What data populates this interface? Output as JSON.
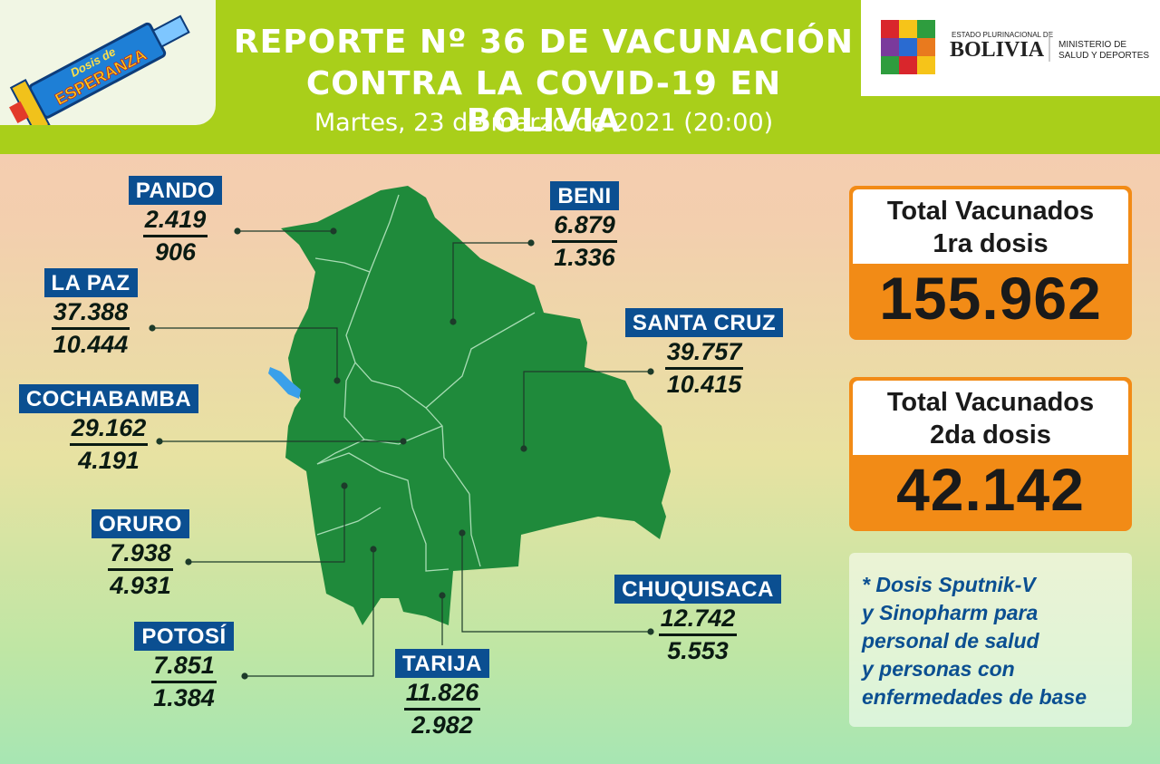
{
  "header": {
    "title_line1": "REPORTE Nº 36 DE VACUNACIÓN",
    "title_line2": "CONTRA LA COVID-19 EN BOLIVIA",
    "date": "Martes, 23 de marzo de 2021 (20:00)"
  },
  "logo": {
    "line1": "Dosis de",
    "line2": "ESPERANZA"
  },
  "government": {
    "small": "ESTADO PLURINACIONAL DE",
    "country": "BOLIVIA",
    "ministry_line1": "MINISTERIO DE",
    "ministry_line2": "SALUD Y DEPORTES"
  },
  "regions": [
    {
      "id": "pando",
      "name": "PANDO",
      "dose1": "2.419",
      "dose2": "906"
    },
    {
      "id": "beni",
      "name": "BENI",
      "dose1": "6.879",
      "dose2": "1.336"
    },
    {
      "id": "la-paz",
      "name": "LA PAZ",
      "dose1": "37.388",
      "dose2": "10.444"
    },
    {
      "id": "santa-cruz",
      "name": "SANTA CRUZ",
      "dose1": "39.757",
      "dose2": "10.415"
    },
    {
      "id": "cochabamba",
      "name": "COCHABAMBA",
      "dose1": "29.162",
      "dose2": "4.191"
    },
    {
      "id": "oruro",
      "name": "ORURO",
      "dose1": "7.938",
      "dose2": "4.931"
    },
    {
      "id": "chuquisaca",
      "name": "CHUQUISACA",
      "dose1": "12.742",
      "dose2": "5.553"
    },
    {
      "id": "potosi",
      "name": "POTOSÍ",
      "dose1": "7.851",
      "dose2": "1.384"
    },
    {
      "id": "tarija",
      "name": "TARIJA",
      "dose1": "11.826",
      "dose2": "2.982"
    }
  ],
  "totals": {
    "first": {
      "label_line1": "Total Vacunados",
      "label_line2": "1ra dosis",
      "value": "155.962"
    },
    "second": {
      "label_line1": "Total Vacunados",
      "label_line2": "2da dosis",
      "value": "42.142"
    }
  },
  "note": "* Dosis Sputnik-V\ny Sinopharm para\npersonal de salud\ny personas con\nenfermedades de base",
  "colors": {
    "header_green": "#a9cf1a",
    "map_green": "#1f8a3b",
    "region_label_blue": "#0b4f91",
    "total_orange": "#f28b16"
  }
}
